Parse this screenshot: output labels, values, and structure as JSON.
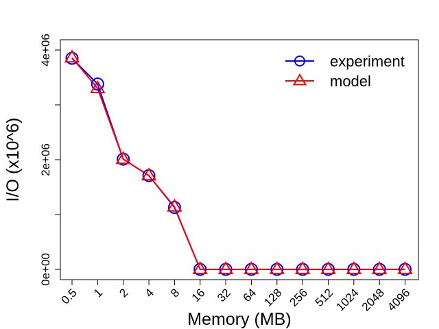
{
  "chart_data": {
    "type": "line",
    "xlabel": "Memory (MB)",
    "ylabel": "I/O (x10^6)",
    "categories": [
      "0.5",
      "1",
      "2",
      "4",
      "8",
      "16",
      "32",
      "64",
      "128",
      "256",
      "512",
      "1024",
      "2048",
      "4096"
    ],
    "ylim": [
      -300000,
      4250000
    ],
    "yticks": [
      0,
      1000000,
      2000000,
      3000000,
      4000000
    ],
    "ytick_labels": [
      "0e+00",
      "",
      "2e+06",
      "",
      "4e+06"
    ],
    "grid": false,
    "legend": "top-right",
    "series": [
      {
        "name": "experiment",
        "color": "#0000ff",
        "marker": "circle",
        "values": [
          3850000,
          3380000,
          2010000,
          1710000,
          1130000,
          0,
          0,
          0,
          0,
          0,
          0,
          0,
          0,
          0
        ]
      },
      {
        "name": "model",
        "color": "#ff0000",
        "marker": "triangle",
        "values": [
          3860000,
          3300000,
          2010000,
          1710000,
          1140000,
          0,
          0,
          0,
          0,
          0,
          0,
          0,
          0,
          0
        ]
      }
    ]
  }
}
